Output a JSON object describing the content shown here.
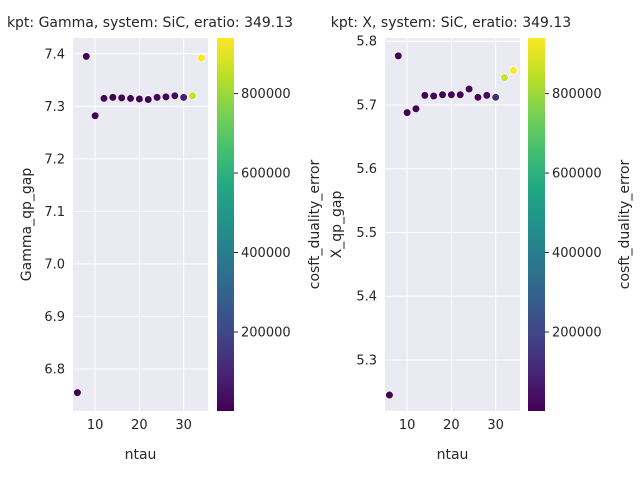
{
  "chart_data": [
    {
      "type": "scatter",
      "title": "kpt: Gamma, system: SiC, eratio: 349.13",
      "xlabel": "ntau",
      "ylabel": "Gamma_qp_gap",
      "xlim": [
        5,
        35.5
      ],
      "ylim": [
        6.72,
        7.43
      ],
      "xticks": [
        10,
        20,
        30
      ],
      "yticks": [
        6.8,
        6.9,
        7.0,
        7.1,
        7.2,
        7.3,
        7.4
      ],
      "ytick_labels": [
        "6.8",
        "6.9",
        "7.0",
        "7.1",
        "7.2",
        "7.3",
        "7.4"
      ],
      "grid": true,
      "colorbar": {
        "label": "cosft_duality_error",
        "colormap": "viridis",
        "range": [
          1000,
          940000
        ],
        "ticks": [
          200000,
          400000,
          600000,
          800000
        ],
        "tick_labels": [
          "200000",
          "400000",
          "600000",
          "800000"
        ]
      },
      "points": [
        {
          "x": 6,
          "y": 6.755,
          "c": 5000
        },
        {
          "x": 8,
          "y": 7.395,
          "c": 5000
        },
        {
          "x": 10,
          "y": 7.282,
          "c": 5000
        },
        {
          "x": 12,
          "y": 7.315,
          "c": 5000
        },
        {
          "x": 14,
          "y": 7.317,
          "c": 5000
        },
        {
          "x": 16,
          "y": 7.316,
          "c": 5000
        },
        {
          "x": 18,
          "y": 7.315,
          "c": 5000
        },
        {
          "x": 20,
          "y": 7.314,
          "c": 5000
        },
        {
          "x": 22,
          "y": 7.313,
          "c": 5000
        },
        {
          "x": 24,
          "y": 7.317,
          "c": 10000
        },
        {
          "x": 26,
          "y": 7.318,
          "c": 15000
        },
        {
          "x": 28,
          "y": 7.32,
          "c": 30000
        },
        {
          "x": 30,
          "y": 7.317,
          "c": 80000
        },
        {
          "x": 32,
          "y": 7.32,
          "c": 860000
        },
        {
          "x": 34,
          "y": 7.392,
          "c": 930000
        }
      ]
    },
    {
      "type": "scatter",
      "title": "kpt: X, system: SiC, eratio: 349.13",
      "xlabel": "ntau",
      "ylabel": "X_qp_gap",
      "xlim": [
        5,
        35.5
      ],
      "ylim": [
        5.22,
        5.805
      ],
      "xticks": [
        10,
        20,
        30
      ],
      "yticks": [
        5.3,
        5.4,
        5.5,
        5.6,
        5.7,
        5.8
      ],
      "ytick_labels": [
        "5.3",
        "5.4",
        "5.5",
        "5.6",
        "5.7",
        "5.8"
      ],
      "grid": true,
      "colorbar": {
        "label": "cosft_duality_error",
        "colormap": "viridis",
        "range": [
          1000,
          940000
        ],
        "ticks": [
          200000,
          400000,
          600000,
          800000
        ],
        "tick_labels": [
          "200000",
          "400000",
          "600000",
          "800000"
        ]
      },
      "points": [
        {
          "x": 6,
          "y": 5.245,
          "c": 5000
        },
        {
          "x": 8,
          "y": 5.777,
          "c": 5000
        },
        {
          "x": 10,
          "y": 5.688,
          "c": 5000
        },
        {
          "x": 12,
          "y": 5.694,
          "c": 5000
        },
        {
          "x": 14,
          "y": 5.715,
          "c": 5000
        },
        {
          "x": 16,
          "y": 5.714,
          "c": 5000
        },
        {
          "x": 18,
          "y": 5.716,
          "c": 5000
        },
        {
          "x": 20,
          "y": 5.716,
          "c": 5000
        },
        {
          "x": 22,
          "y": 5.716,
          "c": 5000
        },
        {
          "x": 24,
          "y": 5.725,
          "c": 10000
        },
        {
          "x": 26,
          "y": 5.712,
          "c": 15000
        },
        {
          "x": 28,
          "y": 5.715,
          "c": 30000
        },
        {
          "x": 30,
          "y": 5.712,
          "c": 120000
        },
        {
          "x": 32,
          "y": 5.743,
          "c": 870000
        },
        {
          "x": 34,
          "y": 5.754,
          "c": 935000
        }
      ]
    }
  ]
}
